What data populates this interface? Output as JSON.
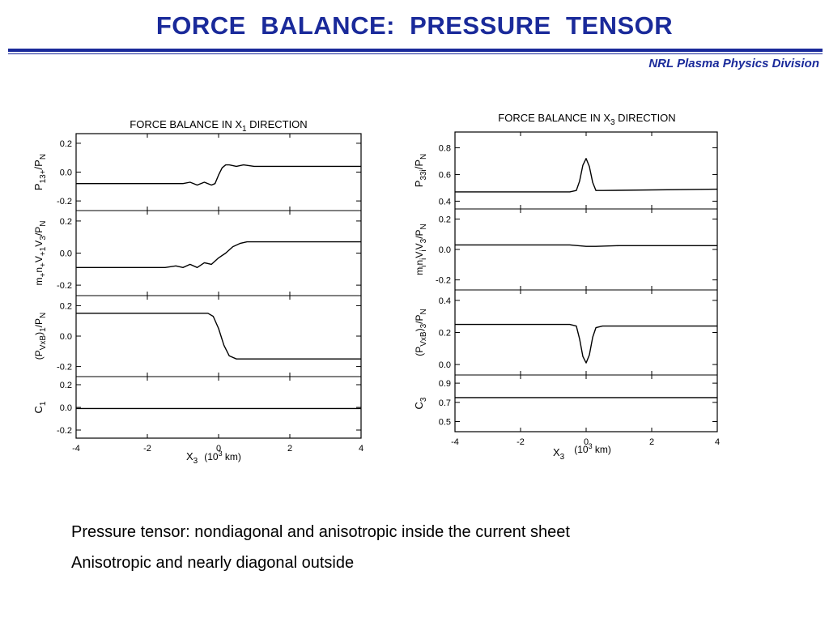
{
  "header": {
    "title": "FORCE  BALANCE:  PRESSURE  TENSOR",
    "division": "NRL Plasma Physics Division"
  },
  "bullets": [
    "Pressure tensor: nondiagonal and anisotropic inside the current sheet",
    "Anisotropic and nearly diagonal outside"
  ],
  "chart_data": [
    {
      "type": "line",
      "title": {
        "main": "FORCE BALANCE IN X",
        "sub": "1",
        "tail": " DIRECTION"
      },
      "xlabel": {
        "var": "X",
        "sub": "3",
        "unit_open": "(10",
        "unit_sup": "3",
        "unit_close": " km)"
      },
      "xlim": [
        -4,
        4
      ],
      "xticks": [
        "-4",
        "-2",
        "0",
        "2",
        "4"
      ],
      "panels": [
        {
          "ylabel": "P13+/PN",
          "ylim": [
            -0.25,
            0.25
          ],
          "yticks": [
            {
              "v": 0.2,
              "label": "0.2"
            },
            {
              "v": 0.0,
              "label": "0.0"
            },
            {
              "v": -0.2,
              "label": "-0.2"
            }
          ],
          "x": [
            -4,
            -1.5,
            -1.0,
            -0.8,
            -0.6,
            -0.4,
            -0.2,
            -0.1,
            0.0,
            0.1,
            0.2,
            0.3,
            0.5,
            0.7,
            1.0,
            1.5,
            4
          ],
          "y": [
            -0.08,
            -0.08,
            -0.08,
            -0.07,
            -0.09,
            -0.07,
            -0.09,
            -0.08,
            -0.02,
            0.03,
            0.05,
            0.05,
            0.04,
            0.05,
            0.04,
            0.04,
            0.04
          ]
        },
        {
          "ylabel": "m+n+V+1V3/PN",
          "ylim": [
            -0.25,
            0.25
          ],
          "yticks": [
            {
              "v": 0.2,
              "label": "0.2"
            },
            {
              "v": 0.0,
              "label": "0.0"
            },
            {
              "v": -0.2,
              "label": "-0.2"
            }
          ],
          "x": [
            -4,
            -2.0,
            -1.5,
            -1.2,
            -1.0,
            -0.8,
            -0.6,
            -0.4,
            -0.2,
            0.0,
            0.2,
            0.4,
            0.6,
            0.8,
            1.0,
            1.5,
            4
          ],
          "y": [
            -0.09,
            -0.09,
            -0.09,
            -0.08,
            -0.09,
            -0.07,
            -0.09,
            -0.06,
            -0.07,
            -0.03,
            0.0,
            0.04,
            0.06,
            0.07,
            0.07,
            0.07,
            0.07
          ]
        },
        {
          "ylabel": "(PVxB)1/PN",
          "ylim": [
            -0.25,
            0.25
          ],
          "yticks": [
            {
              "v": 0.2,
              "label": "0.2"
            },
            {
              "v": 0.0,
              "label": "0.0"
            },
            {
              "v": -0.2,
              "label": "-0.2"
            }
          ],
          "x": [
            -4,
            -0.3,
            -0.15,
            0.0,
            0.15,
            0.3,
            0.5,
            4
          ],
          "y": [
            0.15,
            0.15,
            0.13,
            0.05,
            -0.06,
            -0.13,
            -0.15,
            -0.15
          ]
        },
        {
          "ylabel": "C1",
          "ylim": [
            -0.25,
            0.25
          ],
          "yticks": [
            {
              "v": 0.2,
              "label": "0.2"
            },
            {
              "v": 0.0,
              "label": "0.0"
            },
            {
              "v": -0.2,
              "label": "-0.2"
            }
          ],
          "x": [
            -4,
            4
          ],
          "y": [
            -0.01,
            -0.01
          ]
        }
      ]
    },
    {
      "type": "line",
      "title": {
        "main": "FORCE BALANCE IN X",
        "sub": "3",
        "tail": " DIRECTION"
      },
      "xlabel": {
        "var": "X",
        "sub": "3",
        "unit_open": "(10",
        "unit_sup": "3",
        "unit_close": " km)"
      },
      "xlim": [
        -4,
        4
      ],
      "xticks": [
        "-4",
        "-2",
        "0",
        "2",
        "4"
      ],
      "panels": [
        {
          "ylabel": "P33i/PN",
          "ylim": [
            0.36,
            0.9
          ],
          "yticks": [
            {
              "v": 0.8,
              "label": "0.8"
            },
            {
              "v": 0.6,
              "label": "0.6"
            },
            {
              "v": 0.4,
              "label": "0.4"
            }
          ],
          "x": [
            -4,
            -0.5,
            -0.3,
            -0.2,
            -0.1,
            0.0,
            0.1,
            0.2,
            0.3,
            0.5,
            4
          ],
          "y": [
            0.47,
            0.47,
            0.48,
            0.55,
            0.67,
            0.72,
            0.66,
            0.54,
            0.48,
            0.48,
            0.49
          ]
        },
        {
          "ylabel": "mininiVi3/PN",
          "ylim": [
            -0.25,
            0.25
          ],
          "yticks": [
            {
              "v": 0.2,
              "label": "0.2"
            },
            {
              "v": 0.0,
              "label": "0.0"
            },
            {
              "v": -0.2,
              "label": "-0.2"
            }
          ],
          "x": [
            -4,
            -0.5,
            0.0,
            0.3,
            1.0,
            4
          ],
          "y": [
            0.03,
            0.03,
            0.02,
            0.02,
            0.025,
            0.025
          ]
        },
        {
          "ylabel": "(PVxB)3/PN",
          "ylim": [
            -0.05,
            0.45
          ],
          "yticks": [
            {
              "v": 0.4,
              "label": "0.4"
            },
            {
              "v": 0.2,
              "label": "0.2"
            },
            {
              "v": 0.0,
              "label": "0.0"
            }
          ],
          "x": [
            -4,
            -0.5,
            -0.3,
            -0.2,
            -0.1,
            0.0,
            0.1,
            0.2,
            0.3,
            0.5,
            4
          ],
          "y": [
            0.25,
            0.25,
            0.24,
            0.16,
            0.05,
            0.01,
            0.06,
            0.17,
            0.23,
            0.24,
            0.24
          ]
        },
        {
          "ylabel": "C3",
          "ylim": [
            0.42,
            0.96
          ],
          "yticks": [
            {
              "v": 0.9,
              "label": "0.9"
            },
            {
              "v": 0.7,
              "label": "0.7"
            },
            {
              "v": 0.5,
              "label": "0.5"
            }
          ],
          "x": [
            -4,
            4
          ],
          "y": [
            0.75,
            0.75
          ]
        }
      ]
    }
  ]
}
